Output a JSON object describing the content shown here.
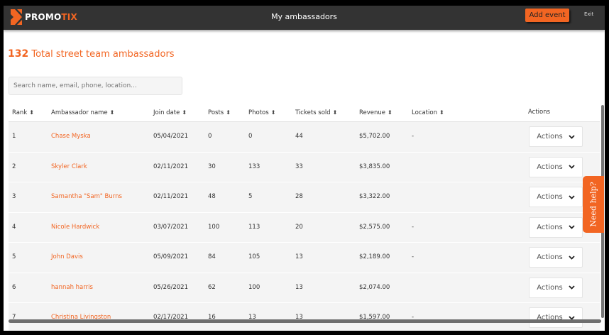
{
  "header": {
    "logo_main": "PROMO",
    "logo_accent": "TIX",
    "title": "My ambassadors",
    "add_event": "Add event",
    "exit": "Exit"
  },
  "summary": {
    "count": "132",
    "label": "Total street team ambassadors"
  },
  "search": {
    "placeholder": "Search name, email, phone, location..."
  },
  "table": {
    "columns": [
      "Rank",
      "Ambassador name",
      "Join date",
      "Posts",
      "Photos",
      "Tickets sold",
      "Revenue",
      "Location",
      "Actions"
    ],
    "sort_icon": "sort-icon",
    "rows": [
      {
        "rank": "1",
        "name": "Chase Myska",
        "join": "05/04/2021",
        "posts": "0",
        "photos": "0",
        "tickets": "44",
        "revenue": "$5,702.00",
        "location": "-",
        "action": "Actions"
      },
      {
        "rank": "2",
        "name": "Skyler Clark",
        "join": "02/11/2021",
        "posts": "30",
        "photos": "133",
        "tickets": "33",
        "revenue": "$3,835.00",
        "location": "",
        "action": "Actions"
      },
      {
        "rank": "3",
        "name": "Samantha \"Sam\" Burns",
        "join": "02/11/2021",
        "posts": "48",
        "photos": "5",
        "tickets": "28",
        "revenue": "$3,322.00",
        "location": "",
        "action": "Actions"
      },
      {
        "rank": "4",
        "name": "Nicole Hardwick",
        "join": "03/07/2021",
        "posts": "100",
        "photos": "113",
        "tickets": "20",
        "revenue": "$2,575.00",
        "location": "-",
        "action": "Actions"
      },
      {
        "rank": "5",
        "name": "John Davis",
        "join": "05/09/2021",
        "posts": "84",
        "photos": "105",
        "tickets": "13",
        "revenue": "$2,189.00",
        "location": "-",
        "action": "Actions"
      },
      {
        "rank": "6",
        "name": "hannah harris",
        "join": "05/26/2021",
        "posts": "62",
        "photos": "100",
        "tickets": "13",
        "revenue": "$2,074.00",
        "location": "",
        "action": "Actions"
      },
      {
        "rank": "7",
        "name": "Christina Livingston",
        "join": "02/17/2021",
        "posts": "16",
        "photos": "13",
        "tickets": "13",
        "revenue": "$1,597.00",
        "location": "-",
        "action": "Actions"
      }
    ]
  },
  "help": {
    "label": "Need help?"
  },
  "colors": {
    "accent": "#f26522",
    "header": "#333333",
    "row": "#f4f4f4"
  }
}
